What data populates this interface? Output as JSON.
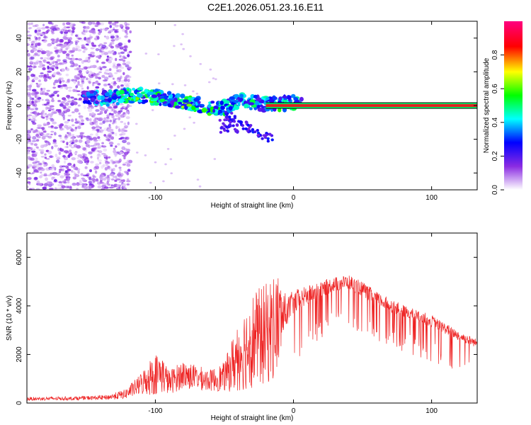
{
  "title": "C2E1.2026.051.23.16.E11",
  "chart_data": [
    {
      "type": "heatmap",
      "title": "C2E1.2026.051.23.16.E11",
      "xlabel": "Height of straight line (km)",
      "ylabel": "Frequency (Hz)",
      "xlim": [
        -193,
        133
      ],
      "ylim": [
        -50,
        50
      ],
      "xticks": [
        -100,
        0,
        100
      ],
      "yticks": [
        -40,
        -20,
        0,
        20,
        40
      ],
      "colorbar": {
        "label": "Normalized spectral amplitude",
        "range": [
          0,
          1
        ],
        "ticks": [
          "0.0",
          "0.2",
          "0.4",
          "0.6",
          "0.8"
        ],
        "tick_values": [
          0.0,
          0.2,
          0.4,
          0.6,
          0.8
        ],
        "colors": [
          "#ffffff",
          "#8a2be2",
          "#0000ff",
          "#00ffff",
          "#00ff00",
          "#ffff00",
          "#ff0000",
          "#ff0080"
        ]
      },
      "noise_region_x": [
        -193,
        -118
      ],
      "track": [
        {
          "x": -152,
          "f": 5,
          "a": 0.3
        },
        {
          "x": -135,
          "f": 4,
          "a": 0.4
        },
        {
          "x": -120,
          "f": 6,
          "a": 0.5
        },
        {
          "x": -110,
          "f": 6,
          "a": 0.55
        },
        {
          "x": -100,
          "f": 5,
          "a": 0.5
        },
        {
          "x": -90,
          "f": 4,
          "a": 0.45
        },
        {
          "x": -80,
          "f": 2,
          "a": 0.55
        },
        {
          "x": -70,
          "f": 1,
          "a": 0.5
        },
        {
          "x": -60,
          "f": -2,
          "a": 0.5
        },
        {
          "x": -50,
          "f": -1,
          "a": 0.45
        },
        {
          "x": -40,
          "f": 3,
          "a": 0.4
        },
        {
          "x": -30,
          "f": 2,
          "a": 0.45
        },
        {
          "x": -20,
          "f": 1,
          "a": 0.4
        },
        {
          "x": -10,
          "f": 1,
          "a": 0.5
        },
        {
          "x": 0,
          "f": 2,
          "a": 0.45
        },
        {
          "x": 7,
          "f": 1,
          "a": 0.4
        }
      ],
      "line_x_range": [
        -20,
        133
      ],
      "line_f": 0
    },
    {
      "type": "line",
      "xlabel": "Height of straight line (km)",
      "ylabel": "SNR (10 * v/v)",
      "xlim": [
        -193,
        133
      ],
      "ylim": [
        0,
        7000
      ],
      "xticks": [
        -100,
        0,
        100
      ],
      "yticks": [
        0,
        2000,
        4000,
        6000
      ],
      "series": [
        {
          "name": "SNR",
          "color": "#ee2222",
          "envelope": {
            "x": [
              -193,
              -160,
              -135,
              -122,
              -112,
              -102,
              -96,
              -90,
              -80,
              -70,
              -60,
              -50,
              -40,
              -30,
              -20,
              -12,
              -5,
              0,
              10,
              20,
              30,
              40,
              50,
              60,
              80,
              100,
              120,
              133
            ],
            "base": [
              150,
              170,
              200,
              300,
              600,
              900,
              1000,
              700,
              1000,
              900,
              800,
              900,
              1500,
              2000,
              2200,
              2600,
              3600,
              4000,
              4300,
              4600,
              4800,
              4900,
              4600,
              4200,
              3700,
              3300,
              2700,
              2400
            ],
            "amp": [
              150,
              150,
              200,
              400,
              800,
              1700,
              1700,
              1000,
              1200,
              1000,
              900,
              1200,
              3000,
              4000,
              4200,
              4500,
              1200,
              1000,
              800,
              700,
              600,
              600,
              600,
              600,
              500,
              500,
              400,
              350
            ]
          }
        }
      ]
    }
  ]
}
